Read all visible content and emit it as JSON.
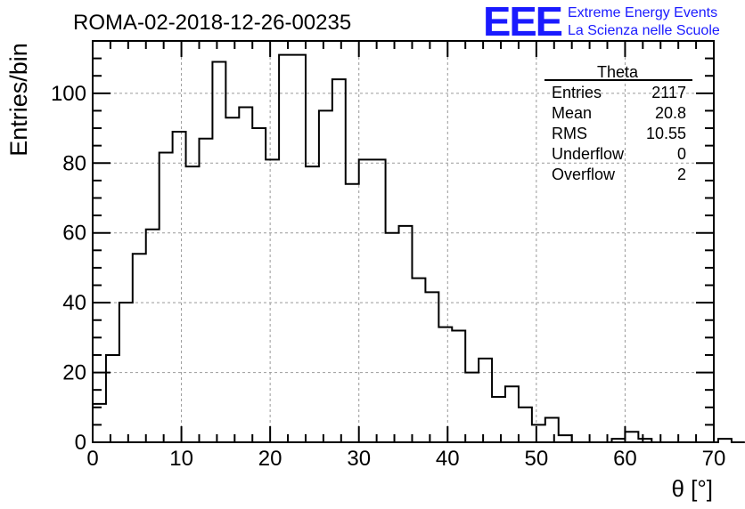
{
  "header": {
    "run_title": "ROMA-02-2018-12-26-00235",
    "logo_text": "EEE",
    "logo_line1": "Extreme Energy Events",
    "logo_line2": "La Scienza nelle Scuole",
    "logo_color": "#1a1aff"
  },
  "stats": {
    "title": "Theta",
    "rows": [
      {
        "label": "Entries",
        "value": "2117"
      },
      {
        "label": "Mean",
        "value": "20.8"
      },
      {
        "label": "RMS",
        "value": "10.55"
      },
      {
        "label": "Underflow",
        "value": "0"
      },
      {
        "label": "Overflow",
        "value": "2"
      }
    ]
  },
  "chart_data": {
    "type": "histogram",
    "title": "ROMA-02-2018-12-26-00235",
    "xlabel": "θ [°]",
    "ylabel": "Entries/bin",
    "xlim": [
      0,
      70
    ],
    "ylim": [
      0,
      115
    ],
    "bin_width": 1.5,
    "x_ticks": [
      0,
      10,
      20,
      30,
      40,
      50,
      60,
      70
    ],
    "y_ticks": [
      0,
      20,
      40,
      60,
      80,
      100
    ],
    "grid": true,
    "line_color": "#000000",
    "bin_edges_start": 0,
    "values": [
      11,
      25,
      40,
      54,
      61,
      83,
      89,
      79,
      87,
      109,
      93,
      96,
      90,
      81,
      111,
      111,
      79,
      95,
      104,
      74,
      81,
      81,
      60,
      62,
      47,
      43,
      33,
      32,
      20,
      24,
      13,
      16,
      10,
      5,
      7,
      2,
      0,
      0,
      0,
      1,
      3,
      1,
      0,
      0,
      0,
      0,
      0,
      1,
      0
    ]
  }
}
